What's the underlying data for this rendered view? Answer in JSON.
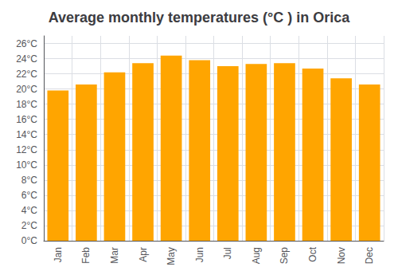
{
  "chart_data": {
    "type": "bar",
    "title": "Average monthly temperatures (°C ) in Orica",
    "categories": [
      "Jan",
      "Feb",
      "Mar",
      "Apr",
      "May",
      "Jun",
      "Jul",
      "Aug",
      "Sep",
      "Oct",
      "Nov",
      "Dec"
    ],
    "values": [
      19.8,
      20.6,
      22.2,
      23.4,
      24.4,
      23.8,
      23.0,
      23.3,
      23.4,
      22.7,
      21.4,
      20.6
    ],
    "color": "#FFA500",
    "ylim": [
      0,
      27
    ],
    "yticks": [
      {
        "value": 0,
        "label": "0°C"
      },
      {
        "value": 2,
        "label": "2°C"
      },
      {
        "value": 4,
        "label": "4°C"
      },
      {
        "value": 6,
        "label": "6°C"
      },
      {
        "value": 8,
        "label": "8°C"
      },
      {
        "value": 10,
        "label": "10°C"
      },
      {
        "value": 12,
        "label": "12°C"
      },
      {
        "value": 14,
        "label": "14°C"
      },
      {
        "value": 16,
        "label": "16°C"
      },
      {
        "value": 18,
        "label": "18°C"
      },
      {
        "value": 20,
        "label": "20°C"
      },
      {
        "value": 22,
        "label": "22°C"
      },
      {
        "value": 24,
        "label": "24°C"
      },
      {
        "value": 26,
        "label": "26°C"
      }
    ],
    "grid": true
  }
}
